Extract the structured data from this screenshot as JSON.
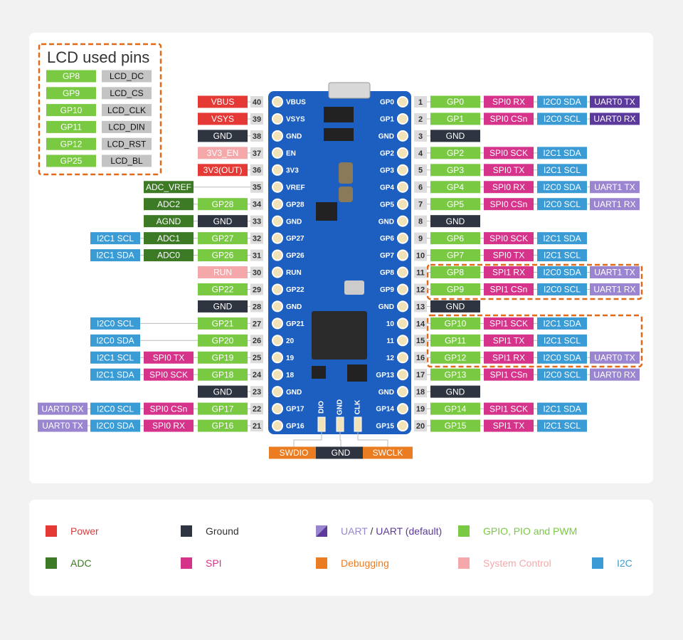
{
  "lcd": {
    "title": "LCD used pins",
    "rows": [
      [
        "GP8",
        "LCD_DC"
      ],
      [
        "GP9",
        "LCD_CS"
      ],
      [
        "GP10",
        "LCD_CLK"
      ],
      [
        "GP11",
        "LCD_DIN"
      ],
      [
        "GP12",
        "LCD_RST"
      ],
      [
        "GP25",
        "LCD_BL"
      ]
    ]
  },
  "left_pins": [
    {
      "number": 40,
      "board_label": "VBUS",
      "labels": [
        {
          "text": "VBUS",
          "color": "#e53935"
        }
      ]
    },
    {
      "number": 39,
      "board_label": "VSYS",
      "labels": [
        {
          "text": "VSYS",
          "color": "#e53935"
        }
      ]
    },
    {
      "number": 38,
      "board_label": "GND",
      "labels": [
        {
          "text": "GND",
          "color": "#2f3441"
        }
      ]
    },
    {
      "number": 37,
      "board_label": "EN",
      "labels": [
        {
          "text": "3V3_EN",
          "color": "#f4a8aa"
        }
      ]
    },
    {
      "number": 36,
      "board_label": "3V3",
      "labels": [
        {
          "text": "3V3(OUT)",
          "color": "#e53935"
        }
      ]
    },
    {
      "number": 35,
      "board_label": "VREF",
      "labels": [
        null,
        {
          "text": "ADC_VREF",
          "color": "#3d7a25"
        }
      ]
    },
    {
      "number": 34,
      "board_label": "GP28",
      "labels": [
        {
          "text": "GP28",
          "color": "#7ac943"
        },
        {
          "text": "ADC2",
          "color": "#3d7a25"
        }
      ]
    },
    {
      "number": 33,
      "board_label": "GND",
      "labels": [
        {
          "text": "GND",
          "color": "#2f3441"
        },
        {
          "text": "AGND",
          "color": "#3d7a25"
        }
      ]
    },
    {
      "number": 32,
      "board_label": "GP27",
      "labels": [
        {
          "text": "GP27",
          "color": "#7ac943"
        },
        {
          "text": "ADC1",
          "color": "#3d7a25"
        },
        {
          "text": "I2C1 SCL",
          "color": "#3a9bd5"
        }
      ]
    },
    {
      "number": 31,
      "board_label": "GP26",
      "labels": [
        {
          "text": "GP26",
          "color": "#7ac943"
        },
        {
          "text": "ADC0",
          "color": "#3d7a25"
        },
        {
          "text": "I2C1 SDA",
          "color": "#3a9bd5"
        }
      ]
    },
    {
      "number": 30,
      "board_label": "RUN",
      "labels": [
        {
          "text": "RUN",
          "color": "#f4a8aa"
        }
      ]
    },
    {
      "number": 29,
      "board_label": "GP22",
      "labels": [
        {
          "text": "GP22",
          "color": "#7ac943"
        }
      ]
    },
    {
      "number": 28,
      "board_label": "GND",
      "labels": [
        {
          "text": "GND",
          "color": "#2f3441"
        }
      ]
    },
    {
      "number": 27,
      "board_label": "GP21",
      "labels": [
        {
          "text": "GP21",
          "color": "#7ac943"
        },
        null,
        {
          "text": "I2C0 SCL",
          "color": "#3a9bd5"
        }
      ]
    },
    {
      "number": 26,
      "board_label": "20",
      "labels": [
        {
          "text": "GP20",
          "color": "#7ac943"
        },
        null,
        {
          "text": "I2C0 SDA",
          "color": "#3a9bd5"
        }
      ]
    },
    {
      "number": 25,
      "board_label": "19",
      "labels": [
        {
          "text": "GP19",
          "color": "#7ac943"
        },
        {
          "text": "SPI0 TX",
          "color": "#d6338a"
        },
        {
          "text": "I2C1 SCL",
          "color": "#3a9bd5"
        }
      ]
    },
    {
      "number": 24,
      "board_label": "18",
      "labels": [
        {
          "text": "GP18",
          "color": "#7ac943"
        },
        {
          "text": "SPI0 SCK",
          "color": "#d6338a"
        },
        {
          "text": "I2C1 SDA",
          "color": "#3a9bd5"
        }
      ]
    },
    {
      "number": 23,
      "board_label": "GND",
      "labels": [
        {
          "text": "GND",
          "color": "#2f3441"
        }
      ]
    },
    {
      "number": 22,
      "board_label": "GP17",
      "labels": [
        {
          "text": "GP17",
          "color": "#7ac943"
        },
        {
          "text": "SPI0 CSn",
          "color": "#d6338a"
        },
        {
          "text": "I2C0 SCL",
          "color": "#3a9bd5"
        },
        {
          "text": "UART0 RX",
          "color": "#9a86d0"
        }
      ]
    },
    {
      "number": 21,
      "board_label": "GP16",
      "labels": [
        {
          "text": "GP16",
          "color": "#7ac943"
        },
        {
          "text": "SPI0 RX",
          "color": "#d6338a"
        },
        {
          "text": "I2C0 SDA",
          "color": "#3a9bd5"
        },
        {
          "text": "UART0 TX",
          "color": "#9a86d0"
        }
      ]
    }
  ],
  "right_pins": [
    {
      "number": 1,
      "board_label": "GP0",
      "labels": [
        {
          "text": "GP0",
          "color": "#7ac943"
        },
        {
          "text": "SPI0 RX",
          "color": "#d6338a"
        },
        {
          "text": "I2C0 SDA",
          "color": "#3a9bd5"
        },
        {
          "text": "UART0 TX",
          "color": "#5b3a9c"
        }
      ]
    },
    {
      "number": 2,
      "board_label": "GP1",
      "labels": [
        {
          "text": "GP1",
          "color": "#7ac943"
        },
        {
          "text": "SPI0 CSn",
          "color": "#d6338a"
        },
        {
          "text": "I2C0 SCL",
          "color": "#3a9bd5"
        },
        {
          "text": "UART0 RX",
          "color": "#5b3a9c"
        }
      ]
    },
    {
      "number": 3,
      "board_label": "GND",
      "labels": [
        {
          "text": "GND",
          "color": "#2f3441"
        }
      ]
    },
    {
      "number": 4,
      "board_label": "GP2",
      "labels": [
        {
          "text": "GP2",
          "color": "#7ac943"
        },
        {
          "text": "SPI0 SCK",
          "color": "#d6338a"
        },
        {
          "text": "I2C1 SDA",
          "color": "#3a9bd5"
        }
      ]
    },
    {
      "number": 5,
      "board_label": "GP3",
      "labels": [
        {
          "text": "GP3",
          "color": "#7ac943"
        },
        {
          "text": "SPI0 TX",
          "color": "#d6338a"
        },
        {
          "text": "I2C1 SCL",
          "color": "#3a9bd5"
        }
      ]
    },
    {
      "number": 6,
      "board_label": "GP4",
      "labels": [
        {
          "text": "GP4",
          "color": "#7ac943"
        },
        {
          "text": "SPI0 RX",
          "color": "#d6338a"
        },
        {
          "text": "I2C0 SDA",
          "color": "#3a9bd5"
        },
        {
          "text": "UART1 TX",
          "color": "#9a86d0"
        }
      ]
    },
    {
      "number": 7,
      "board_label": "GP5",
      "labels": [
        {
          "text": "GP5",
          "color": "#7ac943"
        },
        {
          "text": "SPI0 CSn",
          "color": "#d6338a"
        },
        {
          "text": "I2C0 SCL",
          "color": "#3a9bd5"
        },
        {
          "text": "UART1 RX",
          "color": "#9a86d0"
        }
      ]
    },
    {
      "number": 8,
      "board_label": "GND",
      "labels": [
        {
          "text": "GND",
          "color": "#2f3441"
        }
      ]
    },
    {
      "number": 9,
      "board_label": "GP6",
      "labels": [
        {
          "text": "GP6",
          "color": "#7ac943"
        },
        {
          "text": "SPI0 SCK",
          "color": "#d6338a"
        },
        {
          "text": "I2C1 SDA",
          "color": "#3a9bd5"
        }
      ]
    },
    {
      "number": 10,
      "board_label": "GP7",
      "labels": [
        {
          "text": "GP7",
          "color": "#7ac943"
        },
        {
          "text": "SPI0 TX",
          "color": "#d6338a"
        },
        {
          "text": "I2C1 SCL",
          "color": "#3a9bd5"
        }
      ]
    },
    {
      "number": 11,
      "board_label": "GP8",
      "labels": [
        {
          "text": "GP8",
          "color": "#7ac943"
        },
        {
          "text": "SPI1 RX",
          "color": "#d6338a"
        },
        {
          "text": "I2C0 SDA",
          "color": "#3a9bd5"
        },
        {
          "text": "UART1 TX",
          "color": "#9a86d0"
        }
      ]
    },
    {
      "number": 12,
      "board_label": "GP9",
      "labels": [
        {
          "text": "GP9",
          "color": "#7ac943"
        },
        {
          "text": "SPI1 CSn",
          "color": "#d6338a"
        },
        {
          "text": "I2C0 SCL",
          "color": "#3a9bd5"
        },
        {
          "text": "UART1 RX",
          "color": "#9a86d0"
        }
      ]
    },
    {
      "number": 13,
      "board_label": "GND",
      "labels": [
        {
          "text": "GND",
          "color": "#2f3441"
        }
      ]
    },
    {
      "number": 14,
      "board_label": "10",
      "labels": [
        {
          "text": "GP10",
          "color": "#7ac943"
        },
        {
          "text": "SPI1 SCK",
          "color": "#d6338a"
        },
        {
          "text": "I2C1 SDA",
          "color": "#3a9bd5"
        }
      ]
    },
    {
      "number": 15,
      "board_label": "11",
      "labels": [
        {
          "text": "GP11",
          "color": "#7ac943"
        },
        {
          "text": "SPI1 TX",
          "color": "#d6338a"
        },
        {
          "text": "I2C1 SCL",
          "color": "#3a9bd5"
        }
      ]
    },
    {
      "number": 16,
      "board_label": "12",
      "labels": [
        {
          "text": "GP12",
          "color": "#7ac943"
        },
        {
          "text": "SPI1 RX",
          "color": "#d6338a"
        },
        {
          "text": "I2C0 SDA",
          "color": "#3a9bd5"
        },
        {
          "text": "UART0 TX",
          "color": "#9a86d0"
        }
      ]
    },
    {
      "number": 17,
      "board_label": "GP13",
      "labels": [
        {
          "text": "GP13",
          "color": "#7ac943"
        },
        {
          "text": "SPI1 CSn",
          "color": "#d6338a"
        },
        {
          "text": "I2C0 SCL",
          "color": "#3a9bd5"
        },
        {
          "text": "UART0 RX",
          "color": "#9a86d0"
        }
      ]
    },
    {
      "number": 18,
      "board_label": "GND",
      "labels": [
        {
          "text": "GND",
          "color": "#2f3441"
        }
      ]
    },
    {
      "number": 19,
      "board_label": "GP14",
      "labels": [
        {
          "text": "GP14",
          "color": "#7ac943"
        },
        {
          "text": "SPI1 SCK",
          "color": "#d6338a"
        },
        {
          "text": "I2C1 SDA",
          "color": "#3a9bd5"
        }
      ]
    },
    {
      "number": 20,
      "board_label": "GP15",
      "labels": [
        {
          "text": "GP15",
          "color": "#7ac943"
        },
        {
          "text": "SPI1 TX",
          "color": "#d6338a"
        },
        {
          "text": "I2C1 SCL",
          "color": "#3a9bd5"
        }
      ]
    }
  ],
  "debug_pins": [
    {
      "board_label": "DIO",
      "text": "SWDIO",
      "color": "#ea7c22"
    },
    {
      "board_label": "GND",
      "text": "GND",
      "color": "#2f3441"
    },
    {
      "board_label": "CLK",
      "text": "SWCLK",
      "color": "#ea7c22"
    }
  ],
  "legend": [
    {
      "label": "Power",
      "color": "#e53935",
      "text_color": "#d63c3c"
    },
    {
      "label": "Ground",
      "color": "#2f3441",
      "text_color": "#333333"
    },
    {
      "label": "UART",
      "color": "#9a86d0",
      "text_color": "#9a86d0",
      "separator": "/",
      "label2": "UART (default)",
      "color2": "#5b3a9c"
    },
    {
      "label": "GPIO, PIO  and PWM",
      "color": "#7ac943",
      "text_color": "#7ac943"
    },
    {
      "label": "ADC",
      "color": "#3d7a25",
      "text_color": "#3d7a25"
    },
    {
      "label": "SPI",
      "color": "#d6338a",
      "text_color": "#d6338a"
    },
    {
      "label": "Debugging",
      "color": "#ea7c22",
      "text_color": "#ea7c22"
    },
    {
      "label": "System Control",
      "color": "#f4a8aa",
      "text_color": "#f4a8aa"
    },
    {
      "label": "I2C",
      "color": "#3a9bd5",
      "text_color": "#3a9bd5"
    }
  ]
}
